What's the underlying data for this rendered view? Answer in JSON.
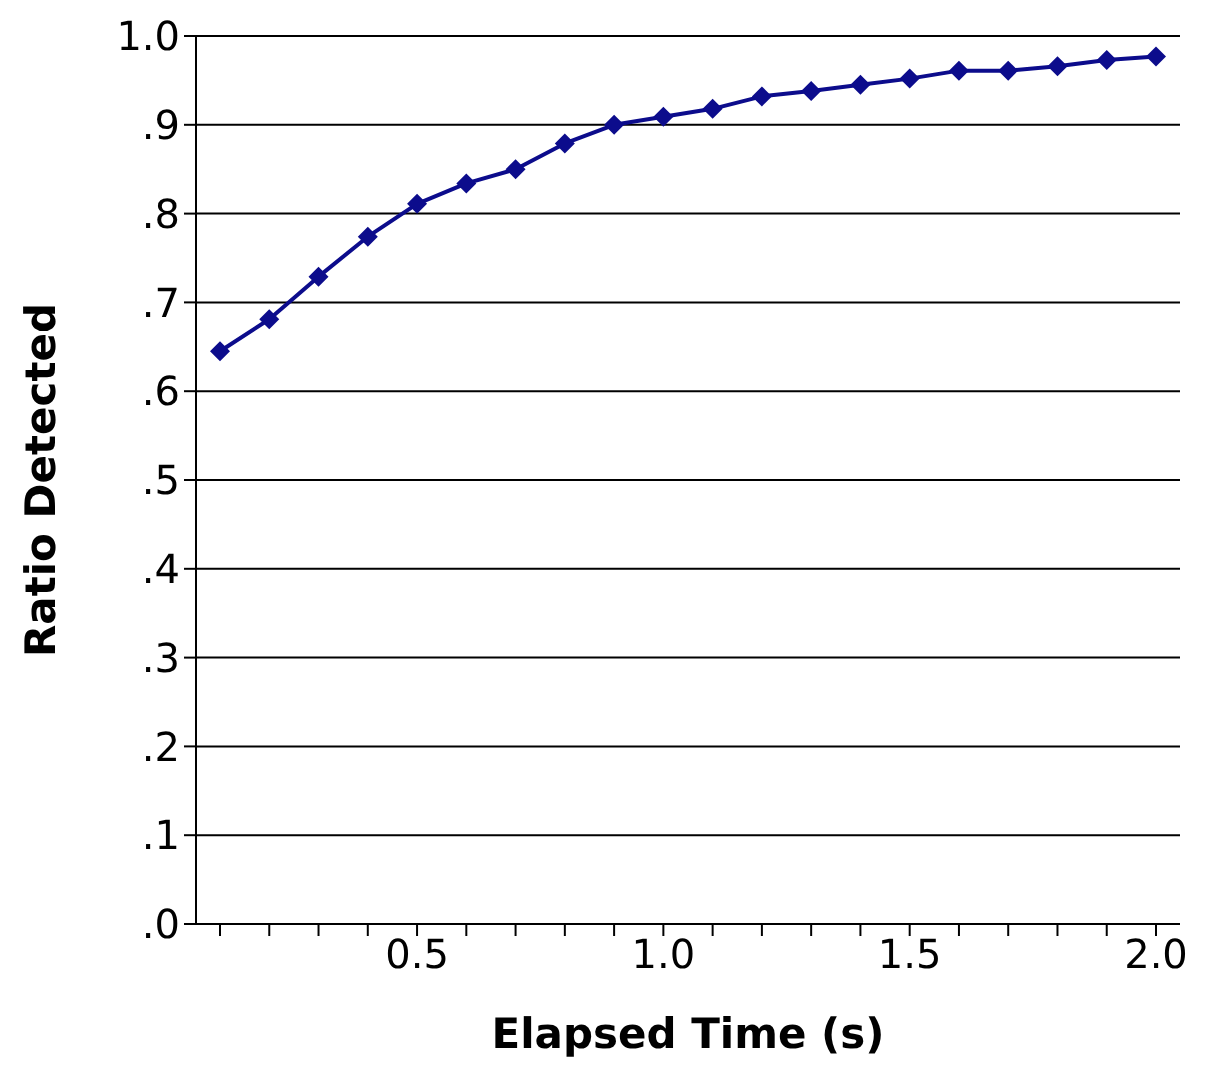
{
  "chart_data": {
    "type": "line",
    "xlabel": "Elapsed Time (s)",
    "ylabel": "Ratio Detected",
    "categories": [
      null,
      null,
      null,
      null,
      "0.5",
      null,
      null,
      null,
      null,
      "1.0",
      null,
      null,
      null,
      null,
      "1.5",
      null,
      null,
      null,
      null,
      "2.0"
    ],
    "series": [
      {
        "color": "#0c0c8c",
        "values": [
          0.645,
          0.681,
          0.729,
          0.774,
          0.811,
          0.834,
          0.85,
          0.879,
          0.9,
          0.909,
          0.918,
          0.932,
          0.938,
          0.945,
          0.952,
          0.961,
          0.961,
          0.966,
          0.973,
          0.977
        ]
      }
    ],
    "ylim": [
      0,
      1
    ],
    "yticks": [
      {
        "value": 0,
        "label": ".0"
      },
      {
        "value": 0.1,
        "label": ".1"
      },
      {
        "value": 0.2,
        "label": ".2"
      },
      {
        "value": 0.3,
        "label": ".3"
      },
      {
        "value": 0.4,
        "label": ".4"
      },
      {
        "value": 0.5,
        "label": ".5"
      },
      {
        "value": 0.6,
        "label": ".6"
      },
      {
        "value": 0.7,
        "label": ".7"
      },
      {
        "value": 0.8,
        "label": ".8"
      },
      {
        "value": 0.9,
        "label": ".9"
      },
      {
        "value": 1,
        "label": "1.0"
      }
    ],
    "grid": "y",
    "marker": "diamond",
    "line_style": "solid"
  }
}
